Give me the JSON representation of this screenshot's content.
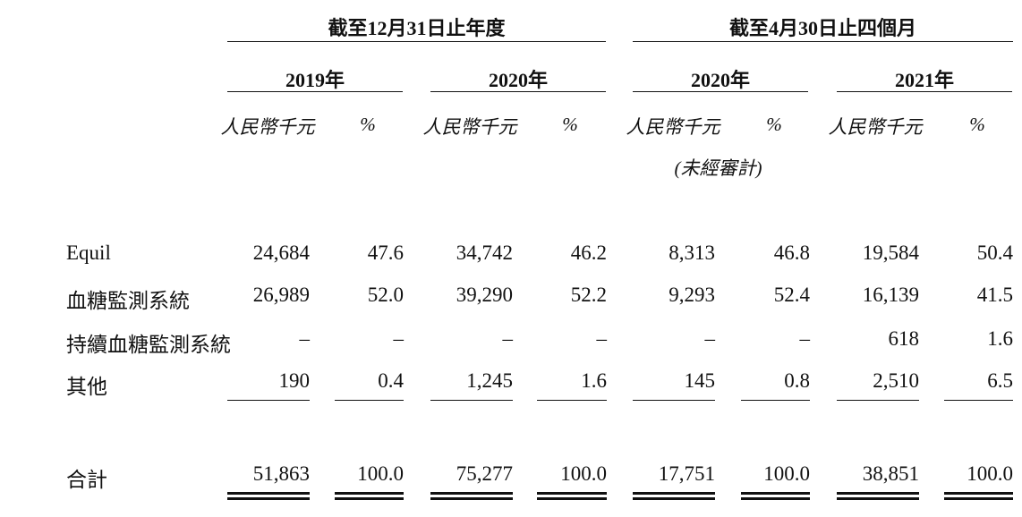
{
  "headers": {
    "group1": "截至12月31日止年度",
    "group2": "截至4月30日止四個月"
  },
  "years": [
    "2019年",
    "2020年",
    "2020年",
    "2021年"
  ],
  "units": {
    "amount": "人民幣千元",
    "percent": "%",
    "unaudited": "(未經審計)"
  },
  "rows": [
    {
      "label": "Equil",
      "values": [
        "24,684",
        "47.6",
        "34,742",
        "46.2",
        "8,313",
        "46.8",
        "19,584",
        "50.4"
      ]
    },
    {
      "label": "血糖監測系統",
      "values": [
        "26,989",
        "52.0",
        "39,290",
        "52.2",
        "9,293",
        "52.4",
        "16,139",
        "41.5"
      ]
    },
    {
      "label": "持續血糖監測系統",
      "values": [
        "–",
        "–",
        "–",
        "–",
        "–",
        "–",
        "618",
        "1.6"
      ]
    },
    {
      "label": "其他",
      "values": [
        "190",
        "0.4",
        "1,245",
        "1.6",
        "145",
        "0.8",
        "2,510",
        "6.5"
      ]
    }
  ],
  "total": {
    "label": "合計",
    "values": [
      "51,863",
      "100.0",
      "75,277",
      "100.0",
      "17,751",
      "100.0",
      "38,851",
      "100.0"
    ]
  }
}
